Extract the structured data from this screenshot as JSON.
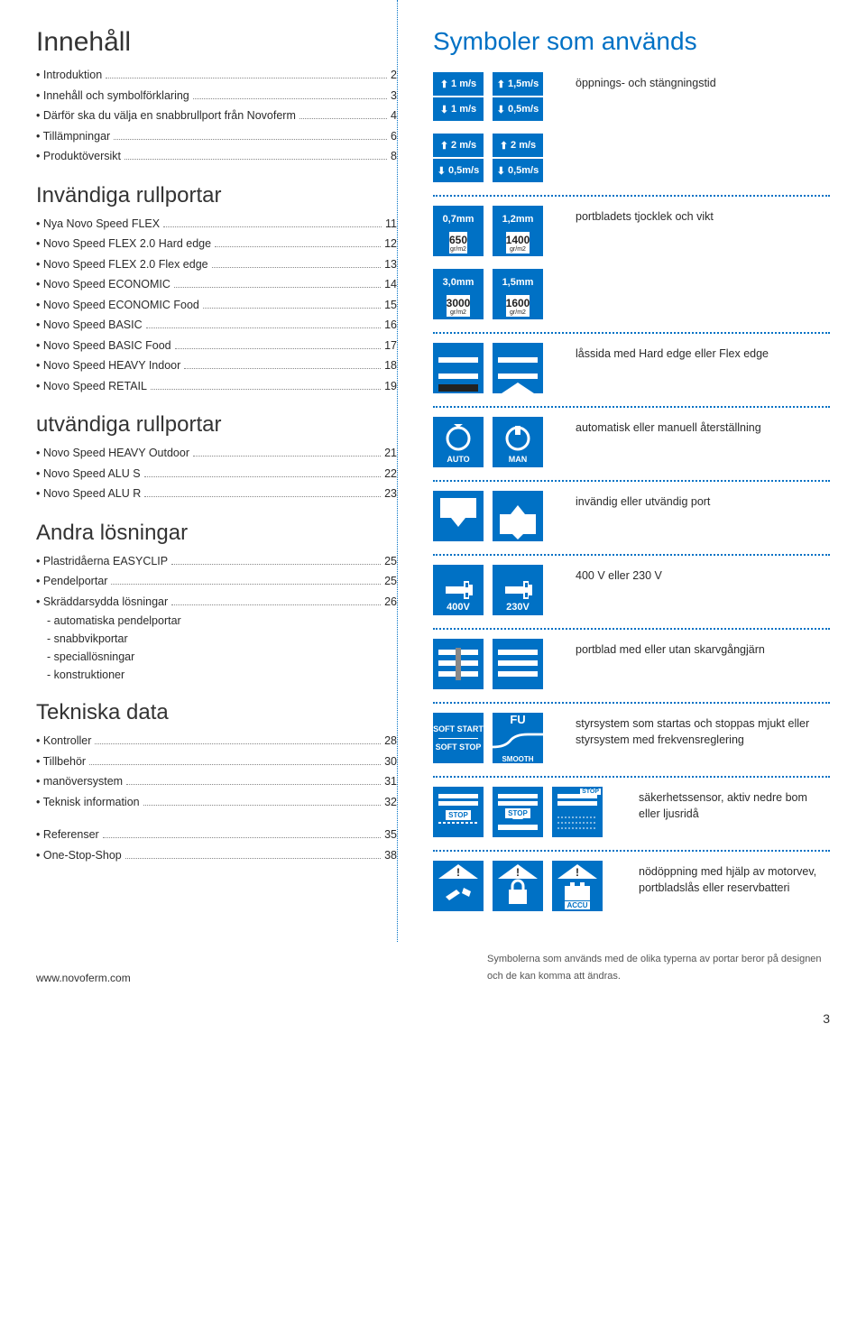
{
  "left": {
    "title": "Innehåll",
    "s1_items": [
      {
        "label": "Introduktion",
        "page": "2"
      },
      {
        "label": "Innehåll och symbolförklaring",
        "page": "3"
      },
      {
        "label": "Därför ska du välja en snabbrullport från Novoferm",
        "page": "4"
      },
      {
        "label": "Tillämpningar",
        "page": "6"
      },
      {
        "label": "Produktöversikt",
        "page": "8"
      }
    ],
    "h2": "Invändiga rullportar",
    "s2_items": [
      {
        "label": "Nya Novo Speed FLEX",
        "page": "11"
      },
      {
        "label": "Novo Speed FLEX 2.0 Hard edge",
        "page": "12"
      },
      {
        "label": "Novo Speed FLEX 2.0 Flex edge",
        "page": "13"
      },
      {
        "label": "Novo Speed ECONOMIC",
        "page": "14"
      },
      {
        "label": "Novo Speed ECONOMIC Food",
        "page": "15"
      },
      {
        "label": "Novo Speed BASIC",
        "page": "16"
      },
      {
        "label": "Novo Speed BASIC Food",
        "page": "17"
      },
      {
        "label": "Novo Speed HEAVY Indoor",
        "page": "18"
      },
      {
        "label": "Novo Speed RETAIL",
        "page": "19"
      }
    ],
    "h3": "utvändiga rullportar",
    "s3_items": [
      {
        "label": "Novo Speed HEAVY Outdoor",
        "page": "21"
      },
      {
        "label": "Novo Speed ALU S",
        "page": "22"
      },
      {
        "label": "Novo Speed ALU R",
        "page": "23"
      }
    ],
    "h4": "Andra lösningar",
    "s4_items": [
      {
        "label": "Plastridåerna EASYCLIP",
        "page": "25"
      },
      {
        "label": "Pendelportar",
        "page": "25"
      },
      {
        "label": "Skräddarsydda lösningar",
        "page": "26"
      }
    ],
    "s4_subitems": [
      "automatiska pendelportar",
      "snabbvikportar",
      "speciallösningar",
      "konstruktioner"
    ],
    "h5": "Tekniska data",
    "s5_items": [
      {
        "label": "Kontroller",
        "page": "28"
      },
      {
        "label": "Tillbehör",
        "page": "30"
      },
      {
        "label": "manöversystem",
        "page": "31"
      },
      {
        "label": "Teknisk information",
        "page": "32"
      }
    ],
    "s6_items": [
      {
        "label": "Referenser",
        "page": "35"
      },
      {
        "label": "One-Stop-Shop",
        "page": "38"
      }
    ]
  },
  "right": {
    "title": "Symboler som används",
    "rows": [
      {
        "desc": "öppnings- och stängningstid"
      },
      {
        "desc": ""
      },
      {
        "desc": "portbladets tjocklek och vikt"
      },
      {
        "desc": ""
      },
      {
        "desc": "låssida med Hard edge eller Flex edge"
      },
      {
        "desc": "automatisk eller manuell återställning"
      },
      {
        "desc": "invändig eller utvändig port"
      },
      {
        "desc": "400 V eller 230 V"
      },
      {
        "desc": "portblad med eller utan skarvgångjärn"
      },
      {
        "desc": "styrsystem som startas och stoppas mjukt eller styrsystem med frekvensreglering"
      },
      {
        "desc": "säkerhetssensor, aktiv nedre bom eller ljusridå"
      },
      {
        "desc": "nödöppning med hjälp av motorvev, portbladslås eller reservbatteri"
      }
    ],
    "speed_a_up": "1 m/s",
    "speed_a_dn": "1 m/s",
    "speed_b_up": "1,5m/s",
    "speed_b_dn": "0,5m/s",
    "speed_c_up": "2 m/s",
    "speed_c_dn": "0,5m/s",
    "speed_d_up": "2 m/s",
    "speed_d_dn": "0,5m/s",
    "thick_a": "0,7mm",
    "thick_a_w": "650",
    "thick_a_u": "gr/m2",
    "thick_b": "1,2mm",
    "thick_b_w": "1400",
    "thick_b_u": "gr/m2",
    "thick_c": "3,0mm",
    "thick_c_w": "3000",
    "thick_c_u": "gr/m2",
    "thick_d": "1,5mm",
    "thick_d_w": "1600",
    "thick_d_u": "gr/m2",
    "auto": "AUTO",
    "man": "MAN",
    "v400": "400V",
    "v230": "230V",
    "soft1": "SOFT START",
    "soft2": "SOFT STOP",
    "fu": "FU",
    "smooth": "SMOOTH",
    "stop": "STOP",
    "accu": "ACCU"
  },
  "footer": {
    "url": "www.novoferm.com",
    "note": "Symbolerna som används med de olika typerna av portar beror på designen och de kan komma att ändras.",
    "page": "3"
  },
  "colors": {
    "brand": "#0071c5"
  }
}
